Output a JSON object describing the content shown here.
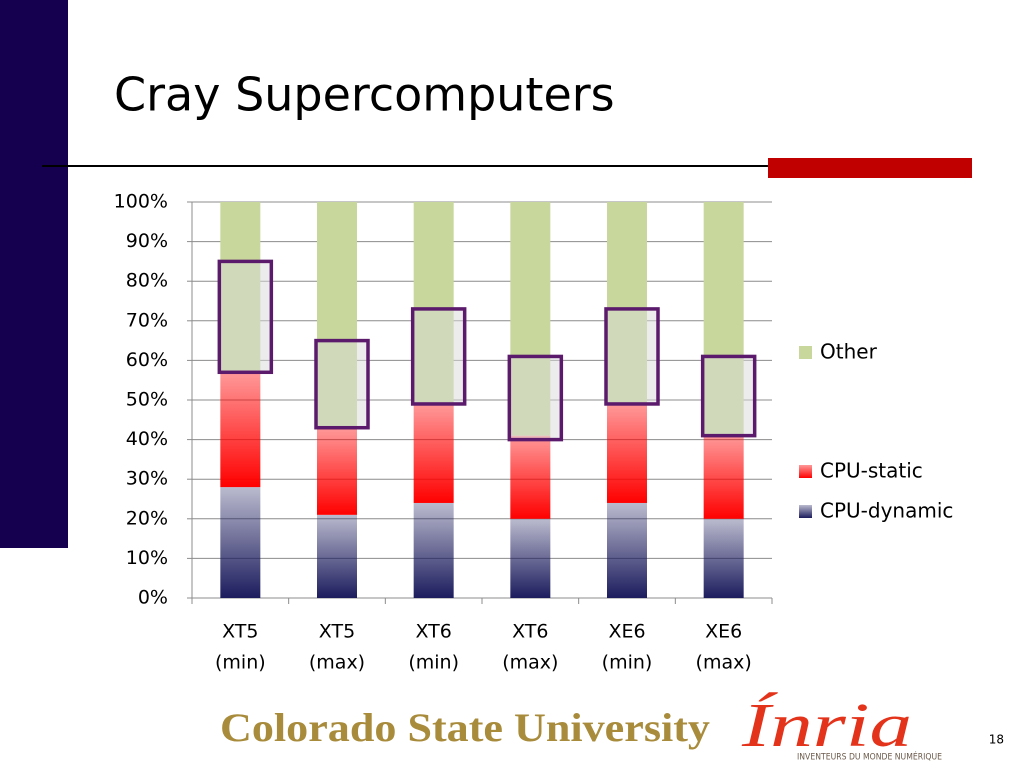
{
  "title": "Cray Supercomputers",
  "page_number": "18",
  "logos": {
    "csu": "Colorado State University",
    "inria": "Ínria",
    "inria_tagline": "INVENTEURS DU MONDE NUMÉRIQUE"
  },
  "chart_data": {
    "type": "stacked_bar",
    "categories": [
      [
        "XT5",
        "(min)"
      ],
      [
        "XT5",
        "(max)"
      ],
      [
        "XT6",
        "(min)"
      ],
      [
        "XT6",
        "(max)"
      ],
      [
        "XE6",
        "(min)"
      ],
      [
        "XE6",
        "(max)"
      ]
    ],
    "series": [
      {
        "name": "CPU-dynamic",
        "color": "#1c1c5e",
        "values": [
          28,
          21,
          24,
          20,
          24,
          20
        ]
      },
      {
        "name": "CPU-static",
        "color": "#ff0000",
        "values": [
          29,
          22,
          25,
          21,
          25,
          21
        ]
      },
      {
        "name": "Other",
        "color": "#c8d89c",
        "values": [
          43,
          57,
          51,
          59,
          51,
          59
        ]
      }
    ],
    "highlights": [
      {
        "low": 57,
        "high": 85
      },
      {
        "low": 43,
        "high": 65
      },
      {
        "low": 49,
        "high": 73
      },
      {
        "low": 40,
        "high": 61
      },
      {
        "low": 49,
        "high": 73
      },
      {
        "low": 41,
        "high": 61
      }
    ],
    "highlight_color": "#5b1a6b",
    "ylim": [
      0,
      100
    ],
    "yticks": [
      {
        "value": 0,
        "label": "0%"
      },
      {
        "value": 10,
        "label": "10%"
      },
      {
        "value": 20,
        "label": "20%"
      },
      {
        "value": 30,
        "label": "30%"
      },
      {
        "value": 40,
        "label": "40%"
      },
      {
        "value": 50,
        "label": "50%"
      },
      {
        "value": 60,
        "label": "60%"
      },
      {
        "value": 70,
        "label": "70%"
      },
      {
        "value": 80,
        "label": "80%"
      },
      {
        "value": 90,
        "label": "90%"
      },
      {
        "value": 100,
        "label": "100%"
      }
    ],
    "grid": true
  }
}
